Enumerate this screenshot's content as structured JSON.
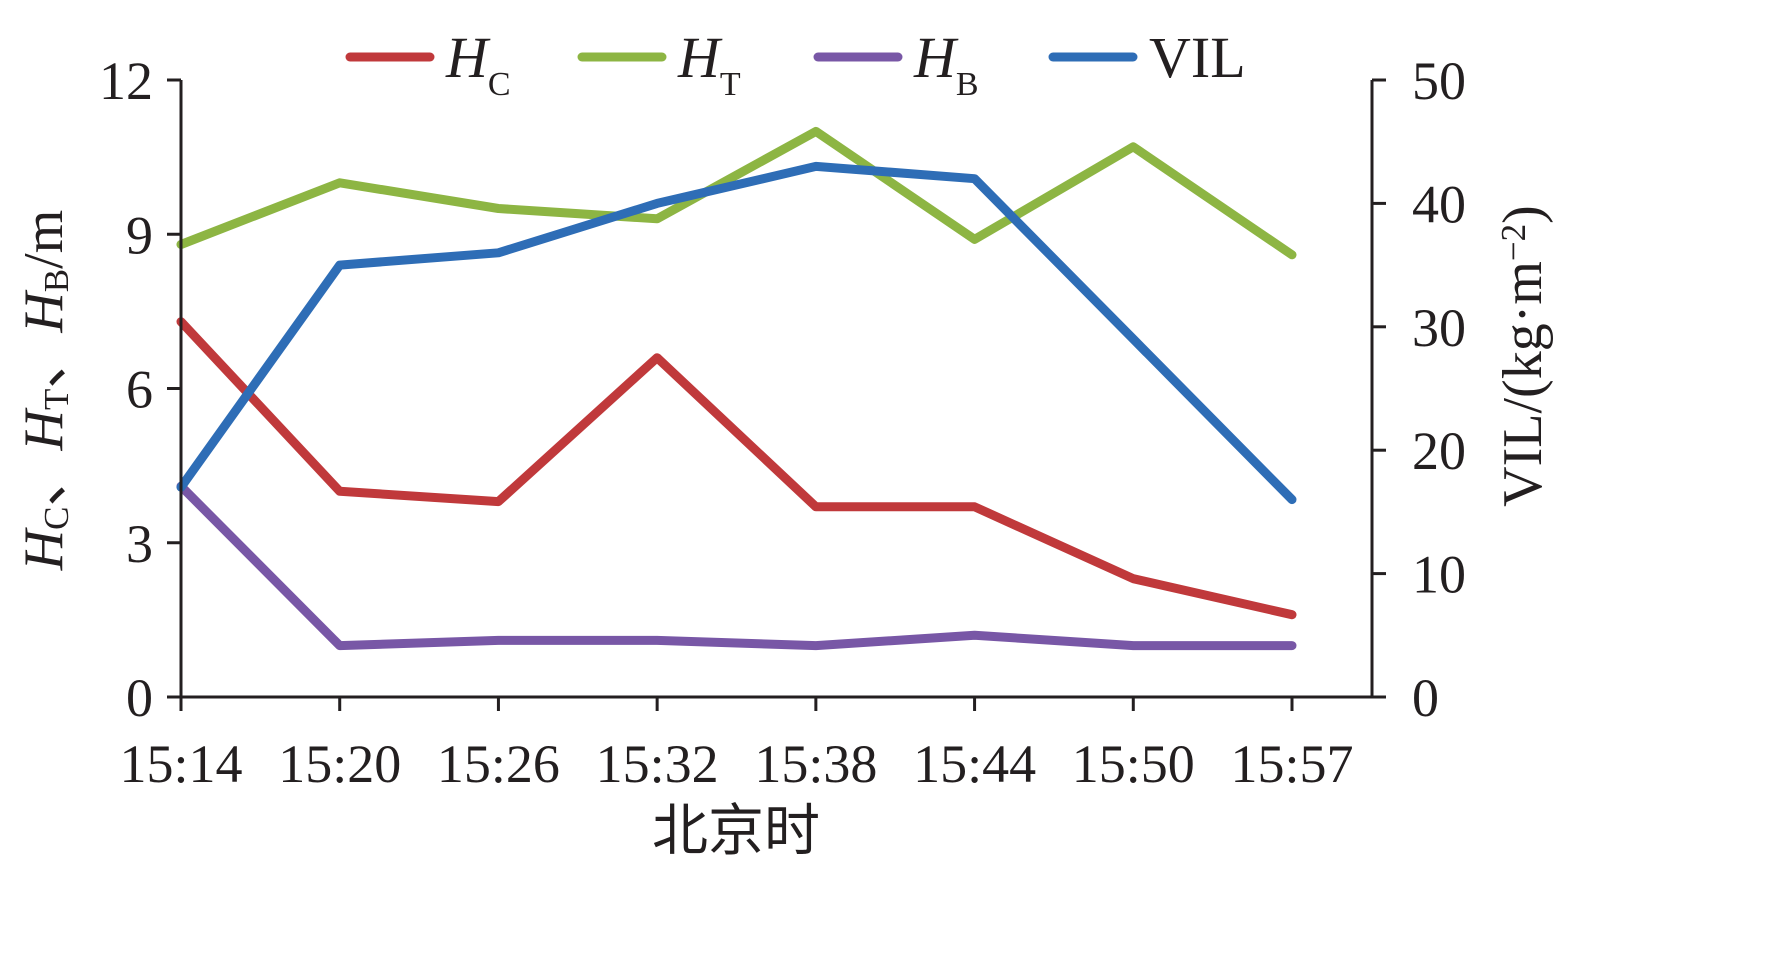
{
  "chart_data": {
    "type": "line",
    "categories": [
      "15:14",
      "15:20",
      "15:26",
      "15:32",
      "15:38",
      "15:44",
      "15:50",
      "15:57"
    ],
    "xlabel": "北京时",
    "y_left": {
      "label_parts": [
        {
          "text": "H",
          "style": "italic"
        },
        {
          "text": "C",
          "style": "sub"
        },
        {
          "text": "、",
          "style": "normal"
        },
        {
          "text": "H",
          "style": "italic"
        },
        {
          "text": "T",
          "style": "sub"
        },
        {
          "text": "、",
          "style": "normal"
        },
        {
          "text": "H",
          "style": "italic"
        },
        {
          "text": "B",
          "style": "sub"
        },
        {
          "text": "/m",
          "style": "normal"
        }
      ],
      "ylim": [
        0,
        12
      ],
      "ticks": [
        "0",
        "3",
        "6",
        "9",
        "12"
      ]
    },
    "y_right": {
      "label_parts": [
        {
          "text": "VIL/(kg",
          "style": "normal"
        },
        {
          "text": "·",
          "style": "normal"
        },
        {
          "text": "m",
          "style": "normal"
        },
        {
          "text": "−2",
          "style": "sup"
        },
        {
          "text": ")",
          "style": "normal"
        }
      ],
      "ylim": [
        0,
        50
      ],
      "ticks": [
        "0",
        "10",
        "20",
        "30",
        "40",
        "50"
      ]
    },
    "series": [
      {
        "name": "H",
        "sub": "C",
        "color": "#c0393b",
        "axis": "left",
        "values": [
          7.3,
          4.0,
          3.8,
          6.6,
          3.7,
          3.7,
          2.3,
          1.6
        ]
      },
      {
        "name": "H",
        "sub": "T",
        "color": "#8db543",
        "axis": "left",
        "values": [
          8.8,
          10.0,
          9.5,
          9.3,
          11.0,
          8.9,
          10.7,
          8.6
        ]
      },
      {
        "name": "H",
        "sub": "B",
        "color": "#7857a6",
        "axis": "left",
        "values": [
          4.1,
          1.0,
          1.1,
          1.1,
          1.0,
          1.2,
          1.0,
          1.0
        ]
      },
      {
        "name": "VIL",
        "sub": "",
        "color": "#2e6db6",
        "axis": "right",
        "values": [
          17.0,
          35.0,
          36.0,
          40.0,
          43.0,
          42.0,
          29.0,
          16.0
        ]
      }
    ],
    "legend_position": "top",
    "grid": false
  }
}
